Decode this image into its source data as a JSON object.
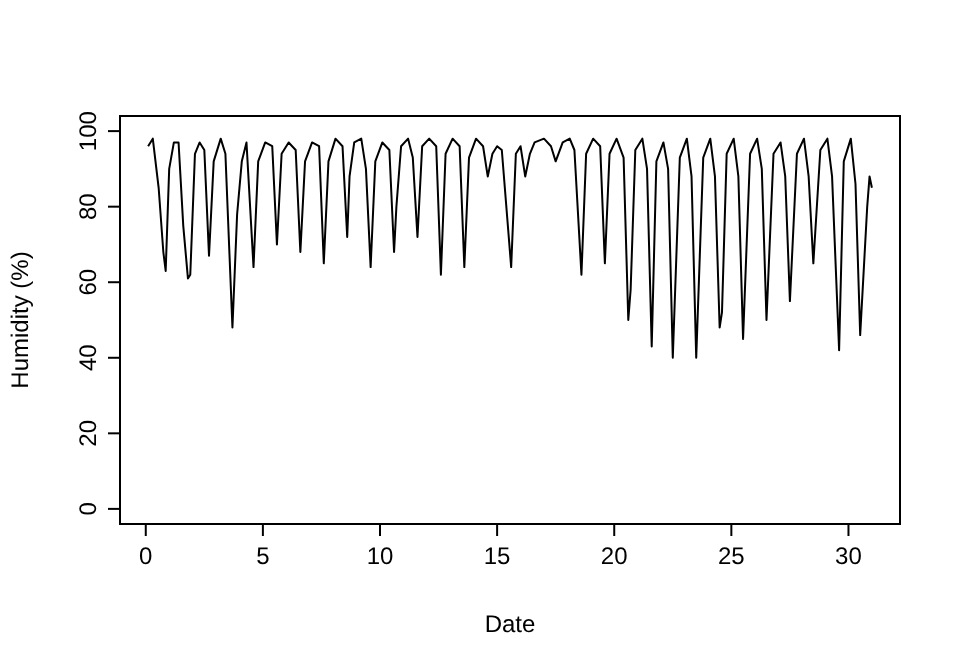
{
  "chart_data": {
    "type": "line",
    "xlabel": "Date",
    "ylabel": "Humidity (%)",
    "color": "#000000",
    "x": [
      0.1,
      0.3,
      0.55,
      0.75,
      0.85,
      1.0,
      1.2,
      1.4,
      1.6,
      1.8,
      1.9,
      2.1,
      2.3,
      2.5,
      2.7,
      2.9,
      3.2,
      3.4,
      3.7,
      3.9,
      4.1,
      4.3,
      4.6,
      4.8,
      5.1,
      5.4,
      5.6,
      5.8,
      6.1,
      6.4,
      6.6,
      6.8,
      7.1,
      7.4,
      7.6,
      7.8,
      8.1,
      8.4,
      8.6,
      8.7,
      8.9,
      9.2,
      9.4,
      9.6,
      9.8,
      10.1,
      10.4,
      10.6,
      10.7,
      10.9,
      11.2,
      11.4,
      11.6,
      11.8,
      12.1,
      12.4,
      12.6,
      12.8,
      13.1,
      13.4,
      13.6,
      13.8,
      14.1,
      14.4,
      14.6,
      14.8,
      15.0,
      15.2,
      15.6,
      15.8,
      16.0,
      16.2,
      16.4,
      16.6,
      17.0,
      17.3,
      17.5,
      17.8,
      18.1,
      18.3,
      18.6,
      18.8,
      19.1,
      19.4,
      19.6,
      19.8,
      20.1,
      20.4,
      20.6,
      20.7,
      20.9,
      21.2,
      21.4,
      21.6,
      21.8,
      22.1,
      22.3,
      22.5,
      22.8,
      23.1,
      23.3,
      23.5,
      23.8,
      24.1,
      24.3,
      24.5,
      24.6,
      24.8,
      25.1,
      25.3,
      25.5,
      25.8,
      26.1,
      26.3,
      26.5,
      26.8,
      27.1,
      27.3,
      27.5,
      27.8,
      28.1,
      28.3,
      28.5,
      28.8,
      29.1,
      29.3,
      29.6,
      29.8,
      30.1,
      30.3,
      30.5,
      30.8,
      30.9,
      31.0
    ],
    "values": [
      96,
      98,
      85,
      68,
      63,
      90,
      97,
      97,
      75,
      61,
      62,
      94,
      97,
      95,
      67,
      92,
      98,
      94,
      48,
      78,
      92,
      97,
      64,
      92,
      97,
      96,
      70,
      94,
      97,
      95,
      68,
      92,
      97,
      96,
      65,
      92,
      98,
      96,
      72,
      88,
      97,
      98,
      90,
      64,
      92,
      97,
      95,
      68,
      80,
      96,
      98,
      93,
      72,
      96,
      98,
      96,
      62,
      94,
      98,
      96,
      64,
      93,
      98,
      96,
      88,
      94,
      96,
      95,
      64,
      94,
      96,
      88,
      94,
      97,
      98,
      96,
      92,
      97,
      98,
      95,
      62,
      94,
      98,
      96,
      65,
      94,
      98,
      93,
      50,
      58,
      95,
      98,
      90,
      43,
      92,
      97,
      90,
      40,
      93,
      98,
      88,
      40,
      93,
      98,
      88,
      48,
      52,
      94,
      98,
      88,
      45,
      94,
      98,
      90,
      50,
      94,
      97,
      88,
      55,
      94,
      98,
      88,
      65,
      95,
      98,
      88,
      42,
      92,
      98,
      86,
      46,
      80,
      88,
      85
    ],
    "xlim": [
      -1.1,
      32.2
    ],
    "ylim": [
      -4,
      104
    ],
    "xticks": [
      0,
      5,
      10,
      15,
      20,
      25,
      30
    ],
    "yticks": [
      0,
      20,
      40,
      60,
      80,
      100
    ],
    "grid": false
  }
}
